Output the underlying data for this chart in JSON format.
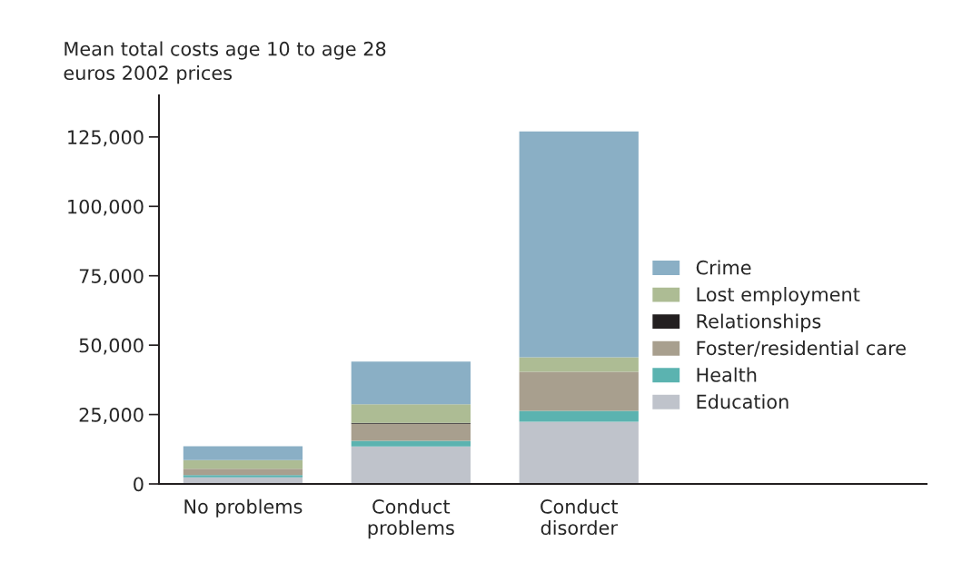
{
  "chart_data": {
    "type": "bar",
    "stacked": true,
    "ylabel": "Mean total costs age 10 to age 28\neuros 2002 prices",
    "categories": [
      "No problems",
      "Conduct\nproblems",
      "Conduct\ndisorder"
    ],
    "series": [
      {
        "name": "Education",
        "color": "#bfc3cb",
        "values": [
          2400,
          13500,
          22400
        ]
      },
      {
        "name": "Health",
        "color": "#5bb3b0",
        "values": [
          800,
          2000,
          3900
        ]
      },
      {
        "name": "Foster/residential care",
        "color": "#a89f8e",
        "values": [
          2300,
          6200,
          14100
        ]
      },
      {
        "name": "Relationships",
        "color": "#231f20",
        "values": [
          null,
          300,
          null
        ]
      },
      {
        "name": "Lost employment",
        "color": "#adbc94",
        "values": [
          3100,
          6700,
          5200
        ]
      },
      {
        "name": "Crime",
        "color": "#8aafc5",
        "values": [
          5000,
          15400,
          81400
        ]
      }
    ],
    "ylim": [
      0,
      140000
    ],
    "yticks": [
      0,
      {
        "value": 25000,
        "label": "25,000"
      },
      {
        "value": 50000,
        "label": "50,000"
      },
      {
        "value": 75000,
        "label": "75,000"
      },
      {
        "value": 100000,
        "label": "100,000"
      },
      {
        "value": 125000,
        "label": "125,000"
      }
    ],
    "legend": "right",
    "grid": false
  }
}
